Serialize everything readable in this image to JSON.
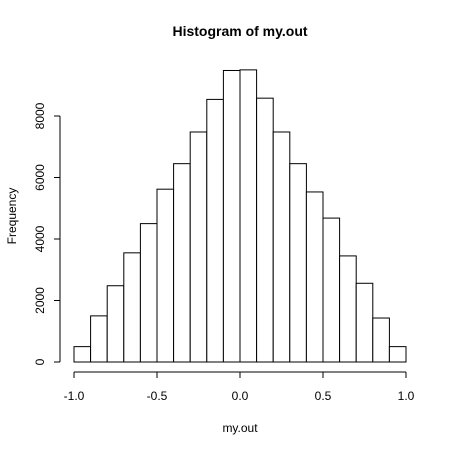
{
  "chart_data": {
    "type": "bar",
    "title": "Histogram of my.out",
    "xlabel": "my.out",
    "ylabel": "Frequency",
    "xlim": [
      -1.0,
      1.0
    ],
    "ylim": [
      0,
      9500
    ],
    "x_ticks": [
      -1.0,
      -0.5,
      0.0,
      0.5,
      1.0
    ],
    "x_tick_labels": [
      "-1.0",
      "-0.5",
      "0.0",
      "0.5",
      "1.0"
    ],
    "y_ticks": [
      0,
      2000,
      4000,
      6000,
      8000
    ],
    "y_tick_labels": [
      "0",
      "2000",
      "4000",
      "6000",
      "8000"
    ],
    "bin_width": 0.1,
    "bins": [
      {
        "x0": -1.0,
        "x1": -0.9,
        "value": 500
      },
      {
        "x0": -0.9,
        "x1": -0.8,
        "value": 1500
      },
      {
        "x0": -0.8,
        "x1": -0.7,
        "value": 2480
      },
      {
        "x0": -0.7,
        "x1": -0.6,
        "value": 3550
      },
      {
        "x0": -0.6,
        "x1": -0.5,
        "value": 4500
      },
      {
        "x0": -0.5,
        "x1": -0.4,
        "value": 5620
      },
      {
        "x0": -0.4,
        "x1": -0.3,
        "value": 6450
      },
      {
        "x0": -0.3,
        "x1": -0.2,
        "value": 7480
      },
      {
        "x0": -0.2,
        "x1": -0.1,
        "value": 8540
      },
      {
        "x0": -0.1,
        "x1": 0.0,
        "value": 9480
      },
      {
        "x0": 0.0,
        "x1": 0.1,
        "value": 9500
      },
      {
        "x0": 0.1,
        "x1": 0.2,
        "value": 8580
      },
      {
        "x0": 0.2,
        "x1": 0.3,
        "value": 7480
      },
      {
        "x0": 0.3,
        "x1": 0.4,
        "value": 6450
      },
      {
        "x0": 0.4,
        "x1": 0.5,
        "value": 5530
      },
      {
        "x0": 0.5,
        "x1": 0.6,
        "value": 4680
      },
      {
        "x0": 0.6,
        "x1": 0.7,
        "value": 3450
      },
      {
        "x0": 0.7,
        "x1": 0.8,
        "value": 2560
      },
      {
        "x0": 0.8,
        "x1": 0.9,
        "value": 1430
      },
      {
        "x0": 0.9,
        "x1": 1.0,
        "value": 500
      }
    ],
    "grid": false,
    "legend": "none",
    "colors": {
      "bar_fill": "#ffffff",
      "bar_stroke": "#000000"
    }
  }
}
